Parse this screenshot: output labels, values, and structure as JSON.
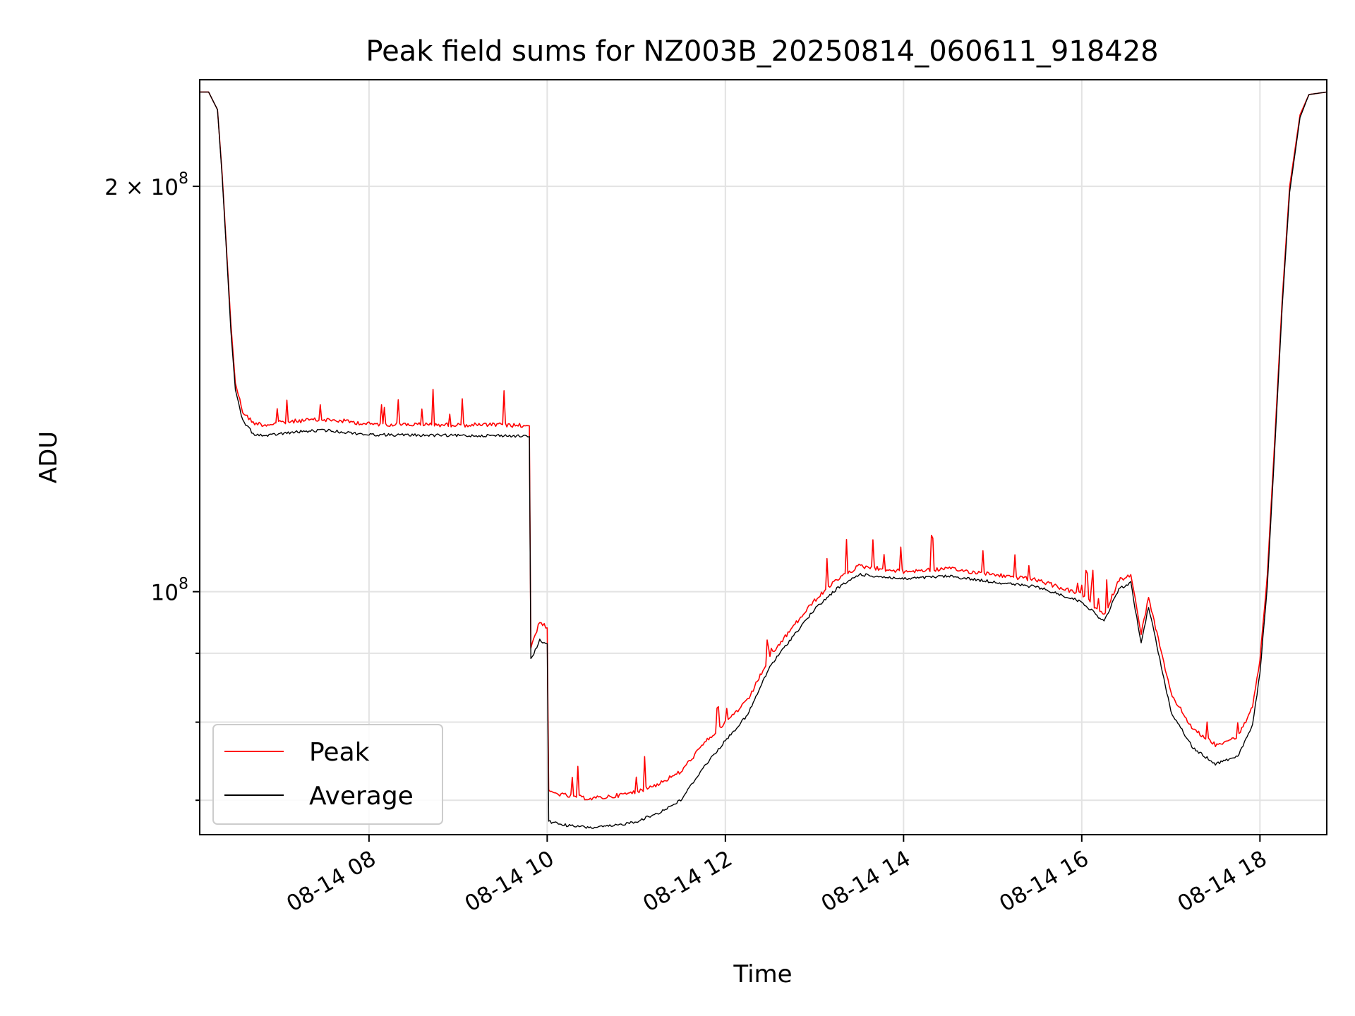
{
  "chart_data": {
    "type": "line",
    "title": "Peak field sums for NZ003B_20250814_060611_918428",
    "xlabel": "Time",
    "ylabel": "ADU",
    "yscale": "log",
    "grid": true,
    "legend_position": "lower-left",
    "xlim": [
      "2025-08-14 06:06",
      "2025-08-14 18:45"
    ],
    "ylim": [
      66000000,
      240000000
    ],
    "x_ticks": [
      {
        "value": "2025-08-14 08:00",
        "label": "08-14 08"
      },
      {
        "value": "2025-08-14 10:00",
        "label": "08-14 10"
      },
      {
        "value": "2025-08-14 12:00",
        "label": "08-14 12"
      },
      {
        "value": "2025-08-14 14:00",
        "label": "08-14 14"
      },
      {
        "value": "2025-08-14 16:00",
        "label": "08-14 16"
      },
      {
        "value": "2025-08-14 18:00",
        "label": "08-14 18"
      }
    ],
    "y_major_ticks": [
      {
        "value": 100000000,
        "label_base": "10",
        "label_exp": "8",
        "label_coef": ""
      },
      {
        "value": 200000000,
        "label_base": "10",
        "label_exp": "8",
        "label_coef": "2 × "
      }
    ],
    "y_minor_ticks": [
      70000000,
      80000000,
      90000000
    ],
    "series": [
      {
        "name": "Peak",
        "color": "#ff0000",
        "points": [
          [
            "2025-08-14 06:06",
            235000000
          ],
          [
            "2025-08-14 06:12",
            235000000
          ],
          [
            "2025-08-14 06:18",
            228000000
          ],
          [
            "2025-08-14 06:21",
            205000000
          ],
          [
            "2025-08-14 06:24",
            180000000
          ],
          [
            "2025-08-14 06:27",
            158000000
          ],
          [
            "2025-08-14 06:30",
            143000000
          ],
          [
            "2025-08-14 06:35",
            136000000
          ],
          [
            "2025-08-14 06:42",
            133500000
          ],
          [
            "2025-08-14 06:50",
            133000000
          ],
          [
            "2025-08-14 07:00",
            133500000
          ],
          [
            "2025-08-14 07:15",
            134000000
          ],
          [
            "2025-08-14 07:30",
            134200000
          ],
          [
            "2025-08-14 07:45",
            133800000
          ],
          [
            "2025-08-14 08:00",
            133200000
          ],
          [
            "2025-08-14 08:30",
            133100000
          ],
          [
            "2025-08-14 09:00",
            133000000
          ],
          [
            "2025-08-14 09:30",
            133000000
          ],
          [
            "2025-08-14 09:48",
            132800000
          ],
          [
            "2025-08-14 09:49",
            91000000
          ],
          [
            "2025-08-14 09:55",
            95000000
          ],
          [
            "2025-08-14 10:00",
            94000000
          ],
          [
            "2025-08-14 10:01",
            71000000
          ],
          [
            "2025-08-14 10:15",
            70500000
          ],
          [
            "2025-08-14 10:30",
            70200000
          ],
          [
            "2025-08-14 10:45",
            70500000
          ],
          [
            "2025-08-14 11:00",
            71000000
          ],
          [
            "2025-08-14 11:15",
            72000000
          ],
          [
            "2025-08-14 11:30",
            73500000
          ],
          [
            "2025-08-14 11:45",
            77000000
          ],
          [
            "2025-08-14 12:00",
            80000000
          ],
          [
            "2025-08-14 12:15",
            83000000
          ],
          [
            "2025-08-14 12:30",
            89500000
          ],
          [
            "2025-08-14 12:45",
            94000000
          ],
          [
            "2025-08-14 13:00",
            98500000
          ],
          [
            "2025-08-14 13:15",
            102000000
          ],
          [
            "2025-08-14 13:30",
            104500000
          ],
          [
            "2025-08-14 14:00",
            103500000
          ],
          [
            "2025-08-14 14:30",
            104000000
          ],
          [
            "2025-08-14 15:00",
            103000000
          ],
          [
            "2025-08-14 15:30",
            102000000
          ],
          [
            "2025-08-14 16:00",
            99500000
          ],
          [
            "2025-08-14 16:15",
            96000000
          ],
          [
            "2025-08-14 16:25",
            102000000
          ],
          [
            "2025-08-14 16:33",
            103000000
          ],
          [
            "2025-08-14 16:40",
            93000000
          ],
          [
            "2025-08-14 16:45",
            99000000
          ],
          [
            "2025-08-14 17:00",
            84000000
          ],
          [
            "2025-08-14 17:15",
            79000000
          ],
          [
            "2025-08-14 17:30",
            77000000
          ],
          [
            "2025-08-14 17:45",
            78000000
          ],
          [
            "2025-08-14 17:55",
            82000000
          ],
          [
            "2025-08-14 18:00",
            89000000
          ],
          [
            "2025-08-14 18:05",
            103000000
          ],
          [
            "2025-08-14 18:10",
            130000000
          ],
          [
            "2025-08-14 18:15",
            165000000
          ],
          [
            "2025-08-14 18:20",
            200000000
          ],
          [
            "2025-08-14 18:27",
            226000000
          ],
          [
            "2025-08-14 18:33",
            234000000
          ],
          [
            "2025-08-14 18:45",
            235000000
          ]
        ]
      },
      {
        "name": "Average",
        "color": "#000000",
        "points": [
          [
            "2025-08-14 06:06",
            235000000
          ],
          [
            "2025-08-14 06:12",
            235000000
          ],
          [
            "2025-08-14 06:18",
            228000000
          ],
          [
            "2025-08-14 06:21",
            204000000
          ],
          [
            "2025-08-14 06:24",
            179000000
          ],
          [
            "2025-08-14 06:27",
            156000000
          ],
          [
            "2025-08-14 06:30",
            141000000
          ],
          [
            "2025-08-14 06:35",
            134000000
          ],
          [
            "2025-08-14 06:42",
            131000000
          ],
          [
            "2025-08-14 06:50",
            130500000
          ],
          [
            "2025-08-14 07:00",
            131000000
          ],
          [
            "2025-08-14 07:15",
            131500000
          ],
          [
            "2025-08-14 07:30",
            131800000
          ],
          [
            "2025-08-14 07:45",
            131300000
          ],
          [
            "2025-08-14 08:00",
            130800000
          ],
          [
            "2025-08-14 08:30",
            130700000
          ],
          [
            "2025-08-14 09:00",
            130600000
          ],
          [
            "2025-08-14 09:30",
            130600000
          ],
          [
            "2025-08-14 09:48",
            130400000
          ],
          [
            "2025-08-14 09:49",
            89000000
          ],
          [
            "2025-08-14 09:55",
            92000000
          ],
          [
            "2025-08-14 10:00",
            91500000
          ],
          [
            "2025-08-14 10:01",
            67500000
          ],
          [
            "2025-08-14 10:15",
            67000000
          ],
          [
            "2025-08-14 10:30",
            66800000
          ],
          [
            "2025-08-14 10:45",
            67000000
          ],
          [
            "2025-08-14 11:00",
            67500000
          ],
          [
            "2025-08-14 11:15",
            68500000
          ],
          [
            "2025-08-14 11:30",
            70000000
          ],
          [
            "2025-08-14 11:45",
            74000000
          ],
          [
            "2025-08-14 12:00",
            77500000
          ],
          [
            "2025-08-14 12:15",
            81000000
          ],
          [
            "2025-08-14 12:30",
            88000000
          ],
          [
            "2025-08-14 12:45",
            92500000
          ],
          [
            "2025-08-14 13:00",
            97000000
          ],
          [
            "2025-08-14 13:15",
            100500000
          ],
          [
            "2025-08-14 13:30",
            103000000
          ],
          [
            "2025-08-14 14:00",
            102200000
          ],
          [
            "2025-08-14 14:30",
            102700000
          ],
          [
            "2025-08-14 15:00",
            101700000
          ],
          [
            "2025-08-14 15:30",
            100800000
          ],
          [
            "2025-08-14 16:00",
            98300000
          ],
          [
            "2025-08-14 16:15",
            95000000
          ],
          [
            "2025-08-14 16:25",
            100500000
          ],
          [
            "2025-08-14 16:33",
            101500000
          ],
          [
            "2025-08-14 16:40",
            91500000
          ],
          [
            "2025-08-14 16:45",
            97500000
          ],
          [
            "2025-08-14 17:00",
            81500000
          ],
          [
            "2025-08-14 17:15",
            76500000
          ],
          [
            "2025-08-14 17:30",
            74500000
          ],
          [
            "2025-08-14 17:45",
            75500000
          ],
          [
            "2025-08-14 17:55",
            79500000
          ],
          [
            "2025-08-14 18:00",
            87000000
          ],
          [
            "2025-08-14 18:05",
            101000000
          ],
          [
            "2025-08-14 18:10",
            128000000
          ],
          [
            "2025-08-14 18:15",
            163000000
          ],
          [
            "2025-08-14 18:20",
            198000000
          ],
          [
            "2025-08-14 18:27",
            225000000
          ],
          [
            "2025-08-14 18:33",
            234000000
          ],
          [
            "2025-08-14 18:45",
            235000000
          ]
        ]
      }
    ]
  }
}
